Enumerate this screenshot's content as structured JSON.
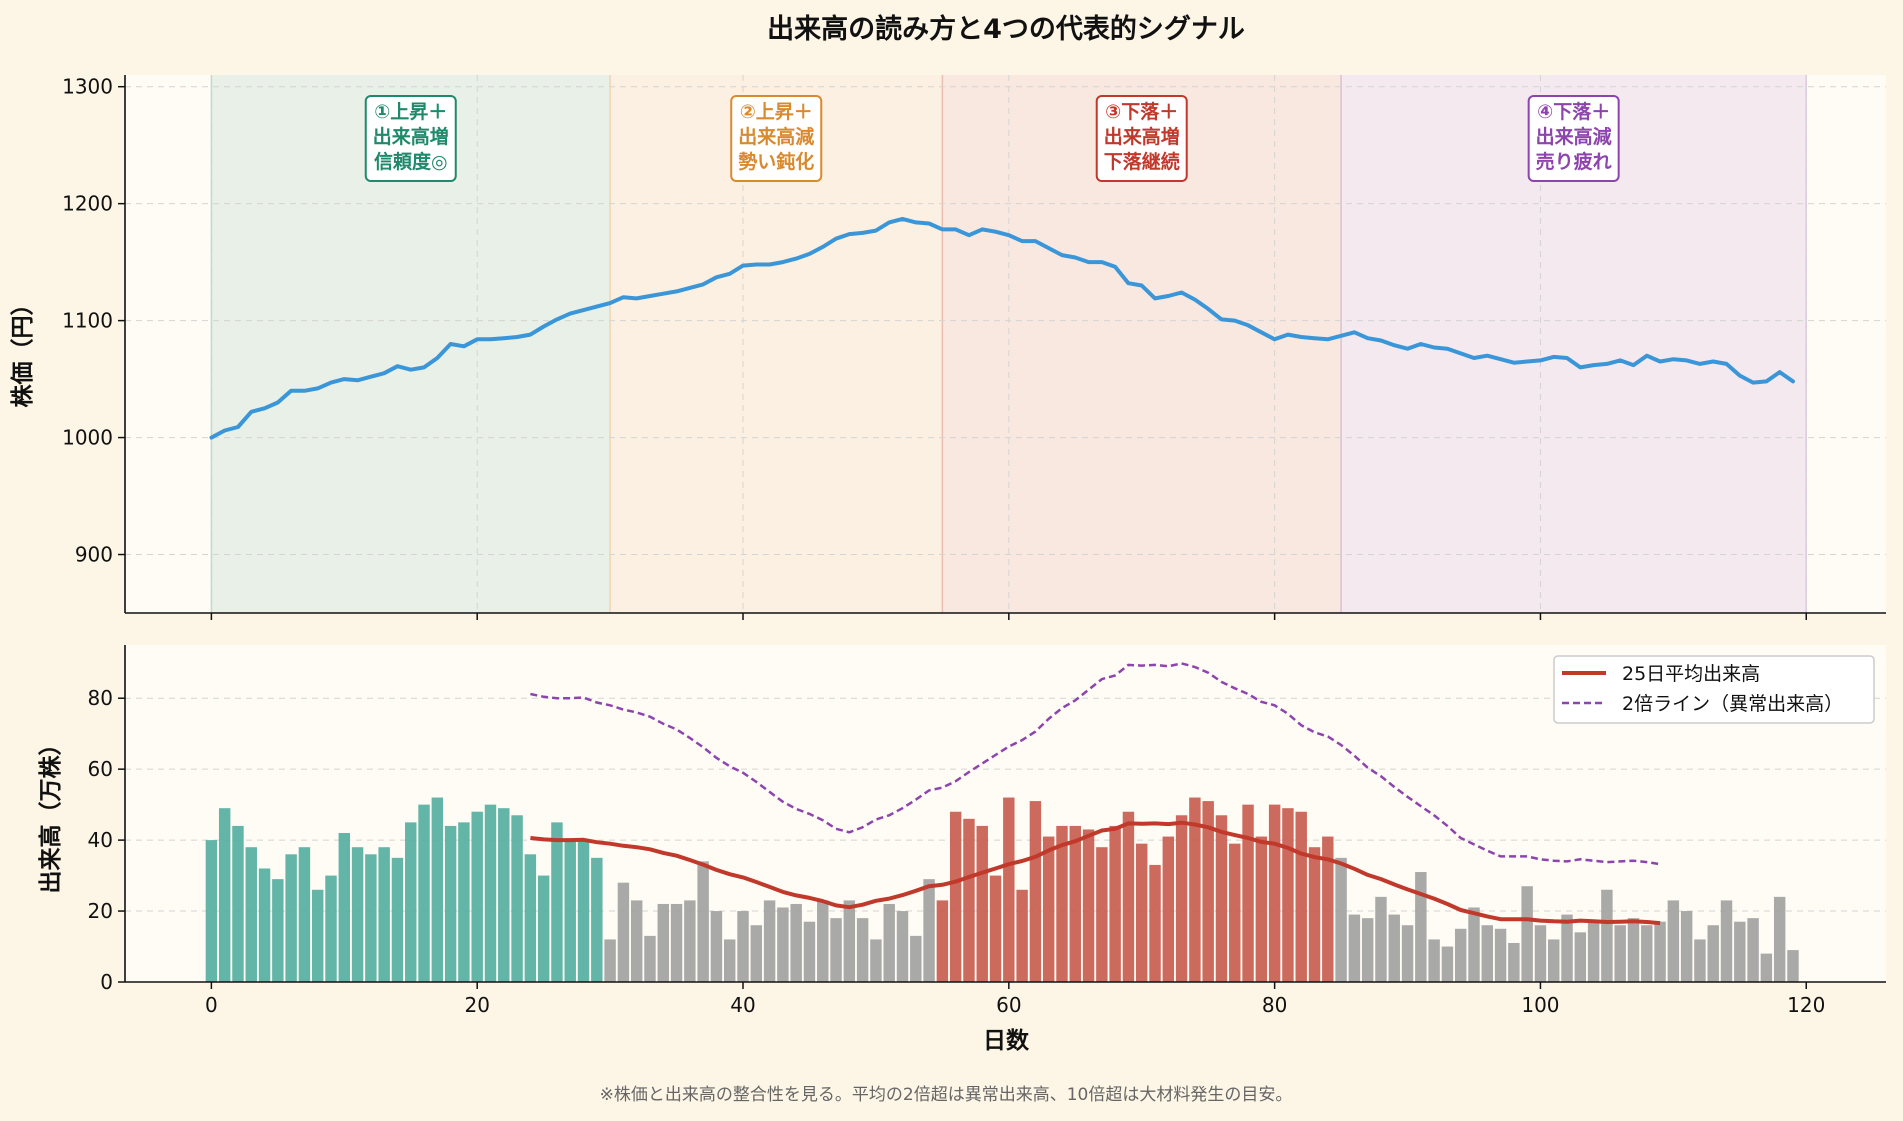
{
  "title": "出来高の読み方と4つの代表的シグナル",
  "footnote": "※株価と出来高の整合性を見る。平均の2倍超は異常出来高、10倍超は大材料発生の目安。",
  "colors": {
    "figure_bg": "#fdf6e6",
    "axes_bg": "#fffcf5",
    "price_line": "#3a96d9",
    "vol_rising": "#52ad9e",
    "vol_falling": "#c65a4e",
    "vol_neutral": "#a0a0a0",
    "ma_line": "#c0392b",
    "double_line": "#8e44ad",
    "phase1": "#1f8a6b",
    "phase2": "#d98a2f",
    "phase3": "#c0392b",
    "phase4": "#8e44ad"
  },
  "chart_data": [
    {
      "type": "line",
      "ylabel": "株価（円）",
      "xlim": [
        -6.5,
        126
      ],
      "ylim": [
        850,
        1310
      ],
      "yticks": [
        900,
        1000,
        1100,
        1200,
        1300
      ],
      "xticks": [
        0,
        20,
        40,
        60,
        80,
        100,
        120
      ],
      "grid": true,
      "series": [
        {
          "values": [
            1000,
            1006,
            1009,
            1022,
            1025,
            1030,
            1040,
            1040,
            1042,
            1047,
            1050,
            1049,
            1052,
            1055,
            1061,
            1058,
            1060,
            1068,
            1080,
            1078,
            1084,
            1084,
            1085,
            1086,
            1088,
            1095,
            1101,
            1106,
            1109,
            1112,
            1115,
            1120,
            1119,
            1121,
            1123,
            1125,
            1128,
            1131,
            1137,
            1140,
            1147,
            1148,
            1148,
            1150,
            1153,
            1157,
            1163,
            1170,
            1174,
            1175,
            1177,
            1184,
            1187,
            1184,
            1183,
            1178,
            1178,
            1173,
            1178,
            1176,
            1173,
            1168,
            1168,
            1162,
            1156,
            1154,
            1150,
            1150,
            1146,
            1132,
            1130,
            1119,
            1121,
            1124,
            1118,
            1110,
            1101,
            1100,
            1096,
            1090,
            1084,
            1088,
            1086,
            1085,
            1084,
            1087,
            1090,
            1085,
            1083,
            1079,
            1076,
            1080,
            1077,
            1076,
            1072,
            1068,
            1070,
            1067,
            1064,
            1065,
            1066,
            1069,
            1068,
            1060,
            1062,
            1063,
            1066,
            1062,
            1070,
            1065,
            1067,
            1066,
            1063,
            1065,
            1063,
            1053,
            1047,
            1048,
            1056,
            1048
          ]
        }
      ],
      "phases": [
        {
          "start": 0,
          "end": 30,
          "label": "①上昇＋\n出来高増\n信頼度◎"
        },
        {
          "start": 30,
          "end": 55,
          "label": "②上昇＋\n出来高減\n勢い鈍化"
        },
        {
          "start": 55,
          "end": 85,
          "label": "③下落＋\n出来高増\n下落継続"
        },
        {
          "start": 85,
          "end": 120,
          "label": "④下落＋\n出来高減\n売り疲れ"
        }
      ]
    },
    {
      "type": "bar",
      "xlabel": "日数",
      "ylabel": "出来高（万株）",
      "xlim": [
        -6.5,
        126
      ],
      "ylim": [
        0,
        95
      ],
      "yticks": [
        0,
        20,
        40,
        60,
        80
      ],
      "xticks": [
        0,
        20,
        40,
        60,
        80,
        100,
        120
      ],
      "grid": true,
      "legend": "top-right",
      "volume": [
        40,
        49,
        44,
        38,
        32,
        29,
        36,
        38,
        26,
        30,
        42,
        38,
        36,
        38,
        35,
        45,
        50,
        52,
        44,
        45,
        48,
        50,
        49,
        47,
        36,
        30,
        45,
        40,
        40,
        35,
        12,
        28,
        23,
        13,
        22,
        22,
        23,
        34,
        20,
        12,
        20,
        16,
        23,
        21,
        22,
        17,
        23,
        18,
        23,
        18,
        12,
        22,
        20,
        13,
        29,
        23,
        48,
        46,
        44,
        30,
        52,
        26,
        51,
        41,
        44,
        44,
        43,
        38,
        44,
        48,
        39,
        33,
        41,
        47,
        52,
        51,
        47,
        39,
        50,
        41,
        50,
        49,
        48,
        38,
        41,
        35,
        19,
        18,
        24,
        19,
        16,
        31,
        12,
        10,
        15,
        21,
        16,
        15,
        11,
        27,
        16,
        12,
        19,
        14,
        17,
        26,
        16,
        18,
        16,
        17,
        23,
        20,
        12,
        16,
        23,
        17,
        18,
        8,
        24,
        9
      ],
      "series": [
        {
          "name": "25日平均出来高",
          "start": 24,
          "values": [
            40.6,
            40.2,
            40.0,
            40.0,
            40.1,
            39.4,
            39.0,
            38.4,
            38.0,
            37.4,
            36.4,
            35.6,
            34.4,
            33.1,
            31.6,
            30.4,
            29.5,
            28.2,
            26.8,
            25.4,
            24.4,
            23.7,
            22.8,
            21.6,
            21.1,
            21.8,
            22.9,
            23.5,
            24.5,
            25.7,
            27.0,
            27.4,
            28.3,
            29.6,
            30.8,
            32.0,
            33.2,
            34.1,
            35.3,
            37.1,
            38.6,
            39.7,
            41.2,
            42.7,
            43.2,
            44.7,
            44.6,
            44.7,
            44.5,
            44.9,
            44.4,
            43.6,
            42.3,
            41.4,
            40.6,
            39.5,
            39.0,
            37.8,
            36.2,
            35.2,
            34.6,
            33.4,
            31.9,
            30.2,
            29.0,
            27.5,
            26.1,
            24.8,
            23.5,
            22.0,
            20.3,
            19.4,
            18.5,
            17.7,
            17.7,
            17.7,
            17.3,
            17.1,
            17.0,
            17.3,
            17.1,
            16.9,
            17.0,
            17.1,
            16.9,
            16.6
          ]
        },
        {
          "name": "2倍ライン（異常出来高）",
          "start": 24,
          "values": [
            81.2,
            80.4,
            80.0,
            80.0,
            80.2,
            78.8,
            78.0,
            76.8,
            76.0,
            74.8,
            72.8,
            71.2,
            68.8,
            66.2,
            63.2,
            60.8,
            59.0,
            56.4,
            53.6,
            50.8,
            48.8,
            47.4,
            45.6,
            43.2,
            42.2,
            43.6,
            45.8,
            47.0,
            49.0,
            51.4,
            54.0,
            54.8,
            56.6,
            59.2,
            61.6,
            64.0,
            66.4,
            68.2,
            70.6,
            74.2,
            77.2,
            79.4,
            82.4,
            85.4,
            86.4,
            89.4,
            89.2,
            89.4,
            89.0,
            89.8,
            88.8,
            87.2,
            84.6,
            82.8,
            81.2,
            79.0,
            78.0,
            75.6,
            72.4,
            70.4,
            69.2,
            66.8,
            63.8,
            60.4,
            58.0,
            55.0,
            52.2,
            49.6,
            47.0,
            44.0,
            40.6,
            38.8,
            37.0,
            35.4,
            35.4,
            35.4,
            34.6,
            34.2,
            34.0,
            34.6,
            34.2,
            33.8,
            34.0,
            34.2,
            33.8,
            33.2
          ]
        }
      ]
    }
  ]
}
